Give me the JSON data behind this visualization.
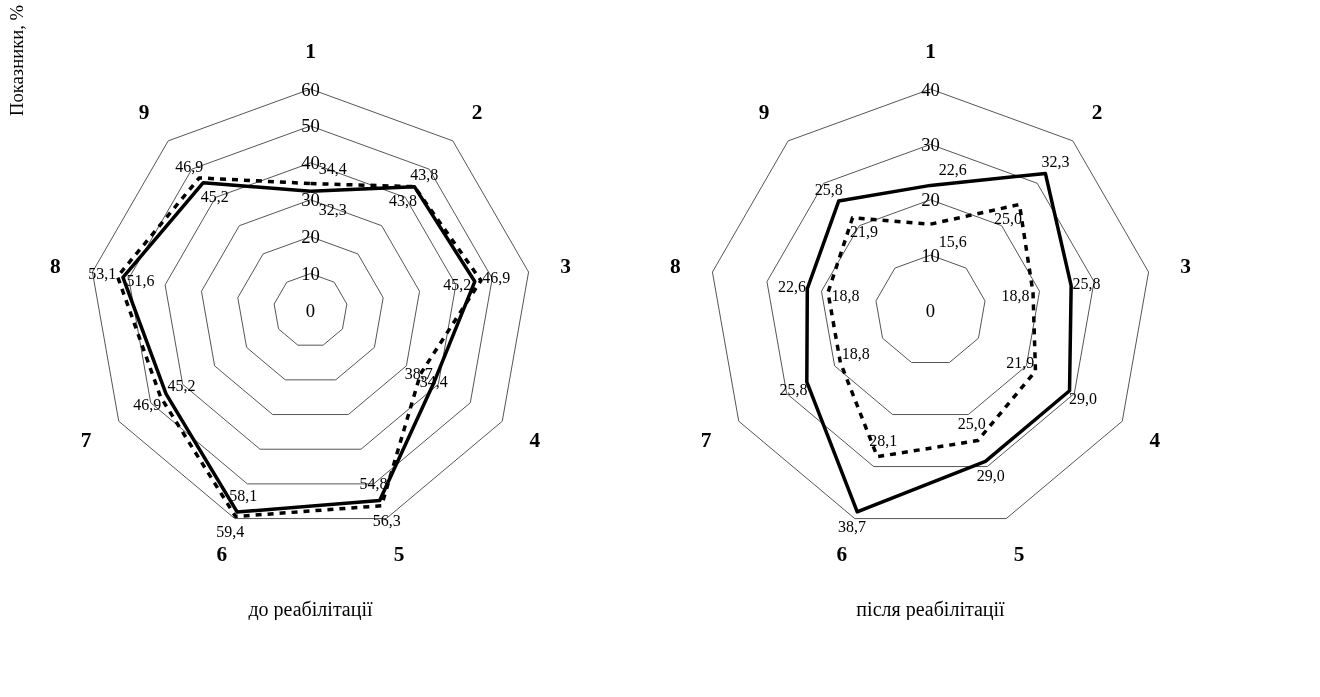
{
  "chart_data": [
    {
      "type": "radar",
      "title": "до реабілітації",
      "ylabel": "Показники, %",
      "categories": [
        "1",
        "2",
        "3",
        "4",
        "5",
        "6",
        "7",
        "8",
        "9"
      ],
      "ylim": [
        0,
        60
      ],
      "yticks": [
        0,
        10,
        20,
        30,
        40,
        50,
        60
      ],
      "grid": true,
      "series": [
        {
          "color": "#000000",
          "line_style": "dashed",
          "values": [
            34.4,
            43.8,
            46.9,
            34.4,
            56.3,
            59.4,
            46.9,
            53.1,
            46.9
          ],
          "value_labels": [
            "34,4",
            "43,8",
            "46,9",
            "34,4",
            "56,3",
            "59,4",
            "46,9",
            "53,1",
            "46,9"
          ]
        },
        {
          "color": "#000000",
          "line_style": "solid",
          "values": [
            32.3,
            43.8,
            45.2,
            38.7,
            54.8,
            58.1,
            45.2,
            51.6,
            45.2
          ],
          "value_labels": [
            "32,3",
            "43,8",
            "45,2",
            "38,7",
            "54,8",
            "58,1",
            "45,2",
            "51,6",
            "45,2"
          ]
        }
      ]
    },
    {
      "type": "radar",
      "title": "після реабілітації",
      "categories": [
        "1",
        "2",
        "3",
        "4",
        "5",
        "6",
        "7",
        "8",
        "9"
      ],
      "ylim": [
        0,
        40
      ],
      "yticks": [
        0,
        10,
        20,
        30,
        40
      ],
      "grid": true,
      "series": [
        {
          "color": "#000000",
          "line_style": "solid",
          "values": [
            22.6,
            32.3,
            25.8,
            29.0,
            29.0,
            38.7,
            25.8,
            22.6,
            25.8
          ],
          "value_labels": [
            "22,6",
            "32,3",
            "25,8",
            "29,0",
            "29,0",
            "38,7",
            "25,8",
            "22,6",
            "25,8"
          ]
        },
        {
          "color": "#000000",
          "line_style": "dashed",
          "values": [
            15.6,
            25.0,
            18.8,
            21.9,
            25.0,
            28.1,
            18.8,
            18.8,
            21.9
          ],
          "value_labels": [
            "15,6",
            "25,0",
            "18,8",
            "21,9",
            "25,0",
            "28,1",
            "18,8",
            "18,8",
            "21,9"
          ]
        }
      ]
    }
  ]
}
